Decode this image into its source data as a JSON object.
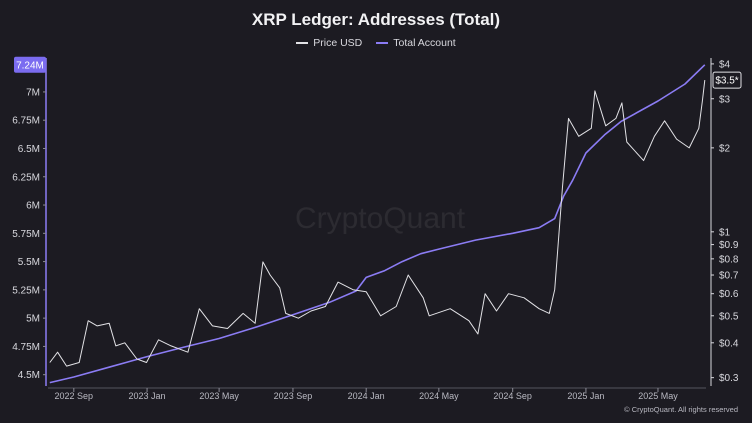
{
  "header": {
    "title": "XRP Ledger: Addresses (Total)"
  },
  "watermark": "CryptoQuant",
  "footer": "© CryptoQuant. All rights reserved",
  "colors": {
    "background": "#1c1b22",
    "price": "#e2e2e6",
    "accounts": "#8b7cf4",
    "accent_badge": "#7b6cf0"
  },
  "chart_data": {
    "type": "line",
    "title": "XRP Ledger: Addresses (Total)",
    "legend": {
      "placement": "top-center",
      "entries": [
        "Price USD",
        "Total Account"
      ]
    },
    "grid": false,
    "x_axis": {
      "range": [
        "2022-07-20",
        "2025-07-20"
      ],
      "tick_labels": [
        "2022 Sep",
        "2023 Jan",
        "2023 May",
        "2023 Sep",
        "2024 Jan",
        "2024 May",
        "2024 Sep",
        "2025 Jan",
        "2025 May"
      ],
      "tick_dates": [
        "2022-09-01",
        "2023-01-01",
        "2023-05-01",
        "2023-09-01",
        "2024-01-01",
        "2024-05-01",
        "2024-09-01",
        "2025-01-01",
        "2025-05-01"
      ]
    },
    "y_left": {
      "range": [
        4.4,
        7.3
      ],
      "unit": "millions",
      "tick_values": [
        4.5,
        4.75,
        5,
        5.25,
        5.5,
        5.75,
        6,
        6.25,
        6.5,
        6.75,
        7
      ],
      "tick_labels": [
        "4.5M",
        "4.75M",
        "5M",
        "5.25M",
        "5.5M",
        "5.75M",
        "6M",
        "6.25M",
        "6.5M",
        "6.75M",
        "7M"
      ],
      "current_label": "7.24M",
      "current_value": 7.24
    },
    "y_right": {
      "scale": "log",
      "range": [
        0.28,
        4.2
      ],
      "tick_values": [
        0.3,
        0.4,
        0.5,
        0.6,
        0.7,
        0.8,
        0.9,
        1,
        2,
        3,
        4
      ],
      "tick_labels": [
        "$0.3",
        "$0.4",
        "$0.5",
        "$0.6",
        "$0.7",
        "$0.8",
        "$0.9",
        "$1",
        "$2",
        "$3",
        "$4"
      ],
      "current_label": "$3.5*",
      "current_value": 3.5
    },
    "series": [
      {
        "name": "Total Account",
        "axis": "left",
        "points": [
          [
            "2022-07-23",
            4.43
          ],
          [
            "2022-09-01",
            4.48
          ],
          [
            "2022-11-01",
            4.57
          ],
          [
            "2023-01-01",
            4.66
          ],
          [
            "2023-03-01",
            4.74
          ],
          [
            "2023-05-01",
            4.82
          ],
          [
            "2023-07-01",
            4.92
          ],
          [
            "2023-09-01",
            5.03
          ],
          [
            "2023-11-01",
            5.14
          ],
          [
            "2023-12-15",
            5.24
          ],
          [
            "2024-01-01",
            5.36
          ],
          [
            "2024-02-01",
            5.42
          ],
          [
            "2024-03-01",
            5.5
          ],
          [
            "2024-04-01",
            5.57
          ],
          [
            "2024-05-01",
            5.61
          ],
          [
            "2024-07-01",
            5.69
          ],
          [
            "2024-09-01",
            5.75
          ],
          [
            "2024-10-15",
            5.8
          ],
          [
            "2024-11-10",
            5.88
          ],
          [
            "2024-11-25",
            6.08
          ],
          [
            "2024-12-10",
            6.22
          ],
          [
            "2025-01-01",
            6.46
          ],
          [
            "2025-02-01",
            6.62
          ],
          [
            "2025-03-01",
            6.74
          ],
          [
            "2025-05-01",
            6.92
          ],
          [
            "2025-06-15",
            7.07
          ],
          [
            "2025-07-18",
            7.24
          ]
        ]
      },
      {
        "name": "Price USD",
        "axis": "right",
        "points": [
          [
            "2022-07-23",
            0.34
          ],
          [
            "2022-08-05",
            0.37
          ],
          [
            "2022-08-20",
            0.33
          ],
          [
            "2022-09-10",
            0.34
          ],
          [
            "2022-09-25",
            0.48
          ],
          [
            "2022-10-10",
            0.46
          ],
          [
            "2022-10-30",
            0.47
          ],
          [
            "2022-11-10",
            0.39
          ],
          [
            "2022-11-25",
            0.4
          ],
          [
            "2022-12-15",
            0.35
          ],
          [
            "2022-12-31",
            0.34
          ],
          [
            "2023-01-20",
            0.41
          ],
          [
            "2023-02-10",
            0.39
          ],
          [
            "2023-03-10",
            0.37
          ],
          [
            "2023-03-29",
            0.53
          ],
          [
            "2023-04-20",
            0.46
          ],
          [
            "2023-05-15",
            0.45
          ],
          [
            "2023-06-10",
            0.51
          ],
          [
            "2023-06-30",
            0.47
          ],
          [
            "2023-07-13",
            0.78
          ],
          [
            "2023-07-25",
            0.7
          ],
          [
            "2023-08-10",
            0.63
          ],
          [
            "2023-08-20",
            0.51
          ],
          [
            "2023-09-10",
            0.49
          ],
          [
            "2023-10-01",
            0.52
          ],
          [
            "2023-10-25",
            0.54
          ],
          [
            "2023-11-15",
            0.66
          ],
          [
            "2023-12-10",
            0.62
          ],
          [
            "2024-01-01",
            0.61
          ],
          [
            "2024-01-25",
            0.5
          ],
          [
            "2024-02-20",
            0.54
          ],
          [
            "2024-03-11",
            0.7
          ],
          [
            "2024-04-05",
            0.58
          ],
          [
            "2024-04-15",
            0.5
          ],
          [
            "2024-05-20",
            0.53
          ],
          [
            "2024-06-20",
            0.48
          ],
          [
            "2024-07-05",
            0.43
          ],
          [
            "2024-07-17",
            0.6
          ],
          [
            "2024-08-05",
            0.52
          ],
          [
            "2024-08-25",
            0.6
          ],
          [
            "2024-09-20",
            0.58
          ],
          [
            "2024-10-15",
            0.53
          ],
          [
            "2024-11-01",
            0.51
          ],
          [
            "2024-11-10",
            0.62
          ],
          [
            "2024-11-23",
            1.45
          ],
          [
            "2024-12-03",
            2.55
          ],
          [
            "2024-12-20",
            2.2
          ],
          [
            "2025-01-10",
            2.35
          ],
          [
            "2025-01-16",
            3.2
          ],
          [
            "2025-02-03",
            2.4
          ],
          [
            "2025-02-20",
            2.55
          ],
          [
            "2025-03-02",
            2.9
          ],
          [
            "2025-03-10",
            2.1
          ],
          [
            "2025-04-07",
            1.8
          ],
          [
            "2025-04-25",
            2.2
          ],
          [
            "2025-05-12",
            2.5
          ],
          [
            "2025-06-01",
            2.15
          ],
          [
            "2025-06-22",
            2.0
          ],
          [
            "2025-07-08",
            2.35
          ],
          [
            "2025-07-14",
            2.95
          ],
          [
            "2025-07-18",
            3.5
          ]
        ]
      }
    ]
  }
}
